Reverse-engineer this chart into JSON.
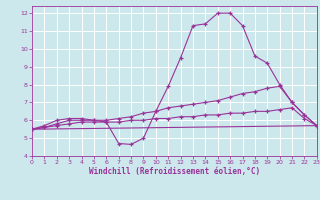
{
  "xlabel": "Windchill (Refroidissement éolien,°C)",
  "background_color": "#cce8ec",
  "grid_color": "#ffffff",
  "line_color": "#993399",
  "xlim": [
    0,
    23
  ],
  "ylim": [
    4,
    12.4
  ],
  "xticks": [
    0,
    1,
    2,
    3,
    4,
    5,
    6,
    7,
    8,
    9,
    10,
    11,
    12,
    13,
    14,
    15,
    16,
    17,
    18,
    19,
    20,
    21,
    22,
    23
  ],
  "yticks": [
    4,
    5,
    6,
    7,
    8,
    9,
    10,
    11,
    12
  ],
  "series": [
    {
      "x": [
        0,
        1,
        2,
        3,
        4,
        5,
        6,
        7,
        8,
        9,
        10,
        11,
        12,
        13,
        14,
        15,
        16,
        17,
        18,
        19,
        20,
        21,
        22,
        23
      ],
      "y": [
        5.5,
        5.7,
        6.0,
        6.1,
        6.1,
        6.0,
        5.9,
        4.7,
        4.65,
        5.0,
        6.5,
        7.9,
        9.5,
        11.3,
        11.4,
        12.0,
        12.0,
        11.3,
        9.6,
        9.2,
        8.0,
        7.0,
        6.3,
        5.7
      ],
      "marker": true
    },
    {
      "x": [
        0,
        1,
        2,
        3,
        4,
        5,
        6,
        7,
        8,
        9,
        10,
        11,
        12,
        13,
        14,
        15,
        16,
        17,
        18,
        19,
        20,
        21,
        22,
        23
      ],
      "y": [
        5.5,
        5.6,
        5.8,
        6.0,
        6.0,
        6.0,
        6.0,
        6.1,
        6.2,
        6.4,
        6.5,
        6.7,
        6.8,
        6.9,
        7.0,
        7.1,
        7.3,
        7.5,
        7.6,
        7.8,
        7.9,
        7.0,
        6.3,
        5.7
      ],
      "marker": true
    },
    {
      "x": [
        0,
        1,
        2,
        3,
        4,
        5,
        6,
        7,
        8,
        9,
        10,
        11,
        12,
        13,
        14,
        15,
        16,
        17,
        18,
        19,
        20,
        21,
        22,
        23
      ],
      "y": [
        5.5,
        5.6,
        5.7,
        5.8,
        5.9,
        5.9,
        5.9,
        5.9,
        6.0,
        6.0,
        6.1,
        6.1,
        6.2,
        6.2,
        6.3,
        6.3,
        6.4,
        6.4,
        6.5,
        6.5,
        6.6,
        6.7,
        6.1,
        5.7
      ],
      "marker": true
    },
    {
      "x": [
        0,
        23
      ],
      "y": [
        5.5,
        5.7
      ],
      "marker": false
    }
  ]
}
